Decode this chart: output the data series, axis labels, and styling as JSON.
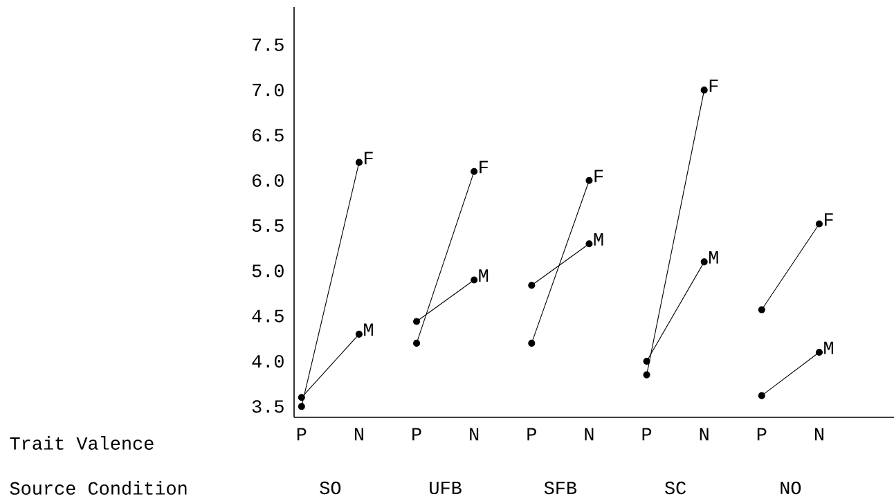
{
  "chart_data": {
    "type": "line",
    "categories": [
      "P",
      "N",
      "P",
      "N",
      "P",
      "N",
      "P",
      "N",
      "P",
      "N"
    ],
    "series": [
      {
        "name": "F",
        "color": "#000000",
        "values": [
          3.5,
          6.2,
          null,
          null,
          null,
          null,
          null,
          null,
          null,
          null
        ]
      },
      {
        "name": "M",
        "color": "#000000",
        "values": [
          3.6,
          4.3,
          null,
          null,
          null,
          null,
          null,
          null,
          null,
          null
        ]
      },
      {
        "name": "F",
        "color": "#000000",
        "values": [
          null,
          null,
          4.2,
          6.1,
          null,
          null,
          null,
          null,
          null,
          null
        ]
      },
      {
        "name": "M",
        "color": "#000000",
        "values": [
          null,
          null,
          4.44,
          4.9,
          null,
          null,
          null,
          null,
          null,
          null
        ]
      },
      {
        "name": "F",
        "color": "#000000",
        "values": [
          null,
          null,
          null,
          null,
          4.2,
          6.0,
          null,
          null,
          null,
          null
        ]
      },
      {
        "name": "M",
        "color": "#000000",
        "values": [
          null,
          null,
          null,
          null,
          4.84,
          5.3,
          null,
          null,
          null,
          null
        ]
      },
      {
        "name": "F",
        "color": "#000000",
        "values": [
          null,
          null,
          null,
          null,
          null,
          null,
          3.85,
          7.0,
          null,
          null
        ]
      },
      {
        "name": "M",
        "color": "#000000",
        "values": [
          null,
          null,
          null,
          null,
          null,
          null,
          4.0,
          5.1,
          null,
          null
        ]
      },
      {
        "name": "F",
        "color": "#000000",
        "values": [
          null,
          null,
          null,
          null,
          null,
          null,
          null,
          null,
          4.57,
          5.52
        ]
      },
      {
        "name": "M",
        "color": "#000000",
        "values": [
          null,
          null,
          null,
          null,
          null,
          null,
          null,
          null,
          3.62,
          4.1
        ]
      }
    ],
    "ylim": [
      3.38,
      7.92
    ],
    "yticks": [
      3.5,
      {
        "value": 4,
        "label": "4.0"
      },
      4.5,
      {
        "value": 5,
        "label": "5.0"
      },
      5.5,
      {
        "value": 6,
        "label": "6.0"
      },
      6.5,
      {
        "value": 7,
        "label": "7.0"
      },
      7.5
    ],
    "marker": "circle",
    "line_style": "solid",
    "annotations": [
      "Trait Valence",
      "Source Condition",
      "SO",
      "UFB",
      "SFB",
      "SC",
      "NO"
    ]
  }
}
